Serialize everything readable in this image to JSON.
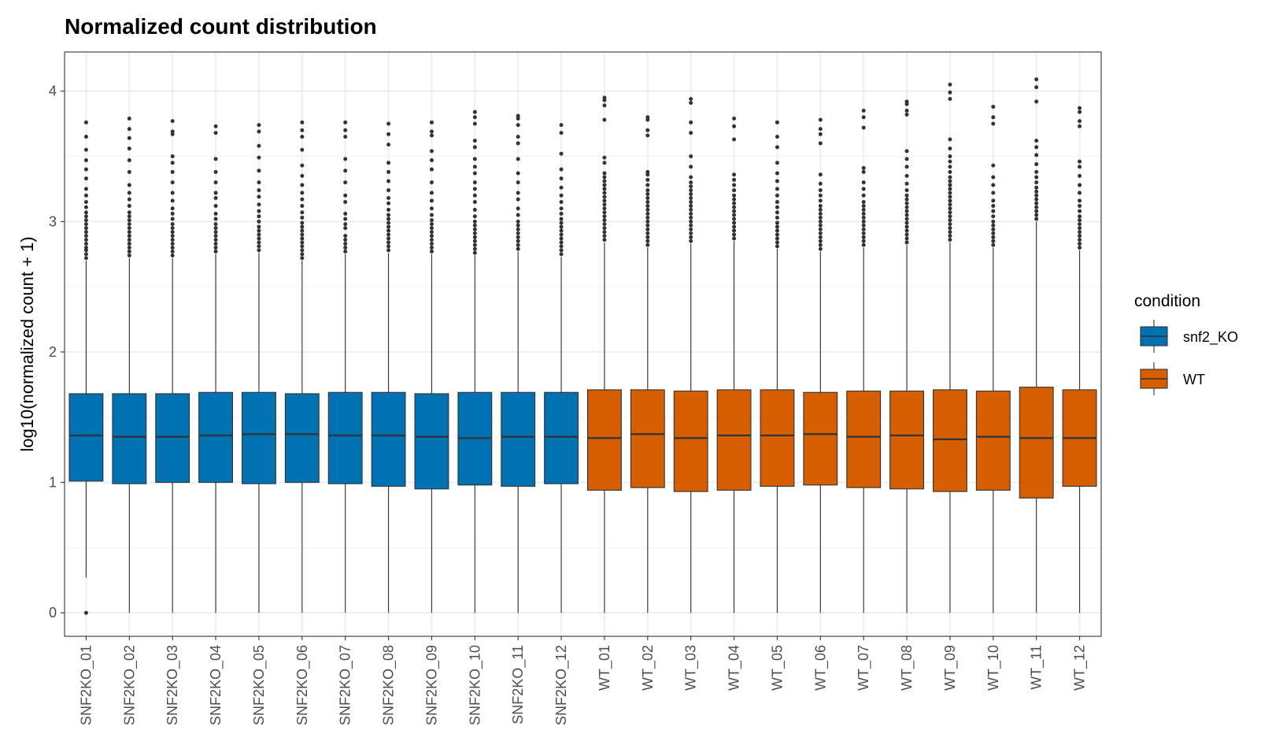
{
  "chart_data": {
    "type": "boxplot",
    "title": "Normalized count distribution",
    "xlabel": "",
    "ylabel": "log10(normalized count + 1)",
    "ylim": [
      -0.18,
      4.3
    ],
    "yticks": [
      0,
      1,
      2,
      3,
      4
    ],
    "grid": true,
    "legend": {
      "title": "condition",
      "position": "right",
      "entries": [
        {
          "name": "snf2_KO",
          "color": "#0072B2"
        },
        {
          "name": "WT",
          "color": "#D55E00"
        }
      ]
    },
    "categories": [
      "SNF2KO_01",
      "SNF2KO_02",
      "SNF2KO_03",
      "SNF2KO_04",
      "SNF2KO_05",
      "SNF2KO_06",
      "SNF2KO_07",
      "SNF2KO_08",
      "SNF2KO_09",
      "SNF2KO_10",
      "SNF2KO_11",
      "SNF2KO_12",
      "WT_01",
      "WT_02",
      "WT_03",
      "WT_04",
      "WT_05",
      "WT_06",
      "WT_07",
      "WT_08",
      "WT_09",
      "WT_10",
      "WT_11",
      "WT_12"
    ],
    "boxes": [
      {
        "sample": "SNF2KO_01",
        "condition": "snf2_KO",
        "min": 0.27,
        "q1": 1.01,
        "median": 1.36,
        "q3": 1.68,
        "max": 2.7,
        "outliers": [
          0.0,
          2.72,
          2.75,
          2.78,
          2.8,
          2.83,
          2.86,
          2.89,
          2.92,
          2.95,
          2.98,
          3.01,
          3.04,
          3.07,
          3.11,
          3.15,
          3.2,
          3.25,
          3.33,
          3.4,
          3.47,
          3.55,
          3.65,
          3.76
        ]
      },
      {
        "sample": "SNF2KO_02",
        "condition": "snf2_KO",
        "min": 0.0,
        "q1": 0.99,
        "median": 1.35,
        "q3": 1.68,
        "max": 2.72,
        "outliers": [
          2.74,
          2.77,
          2.8,
          2.83,
          2.86,
          2.89,
          2.92,
          2.95,
          2.98,
          3.01,
          3.04,
          3.07,
          3.12,
          3.17,
          3.22,
          3.28,
          3.38,
          3.47,
          3.56,
          3.64,
          3.71,
          3.79
        ]
      },
      {
        "sample": "SNF2KO_03",
        "condition": "snf2_KO",
        "min": 0.0,
        "q1": 1.0,
        "median": 1.35,
        "q3": 1.68,
        "max": 2.72,
        "outliers": [
          2.74,
          2.77,
          2.8,
          2.83,
          2.86,
          2.89,
          2.92,
          2.95,
          2.98,
          3.02,
          3.06,
          3.1,
          3.16,
          3.22,
          3.3,
          3.38,
          3.45,
          3.5,
          3.67,
          3.69,
          3.77
        ]
      },
      {
        "sample": "SNF2KO_04",
        "condition": "snf2_KO",
        "min": 0.0,
        "q1": 1.0,
        "median": 1.36,
        "q3": 1.69,
        "max": 2.75,
        "outliers": [
          2.77,
          2.8,
          2.83,
          2.86,
          2.89,
          2.92,
          2.95,
          2.98,
          3.02,
          3.06,
          3.12,
          3.18,
          3.22,
          3.3,
          3.38,
          3.48,
          3.68,
          3.73
        ]
      },
      {
        "sample": "SNF2KO_05",
        "condition": "snf2_KO",
        "min": 0.0,
        "q1": 0.99,
        "median": 1.37,
        "q3": 1.69,
        "max": 2.76,
        "outliers": [
          2.78,
          2.81,
          2.84,
          2.87,
          2.9,
          2.93,
          2.96,
          3.0,
          3.04,
          3.08,
          3.13,
          3.19,
          3.24,
          3.3,
          3.39,
          3.49,
          3.58,
          3.69,
          3.74
        ]
      },
      {
        "sample": "SNF2KO_06",
        "condition": "snf2_KO",
        "min": 0.0,
        "q1": 1.0,
        "median": 1.37,
        "q3": 1.68,
        "max": 2.7,
        "outliers": [
          2.72,
          2.75,
          2.78,
          2.81,
          2.84,
          2.87,
          2.9,
          2.93,
          2.96,
          2.99,
          3.03,
          3.07,
          3.12,
          3.17,
          3.22,
          3.28,
          3.35,
          3.43,
          3.55,
          3.65,
          3.7,
          3.76
        ]
      },
      {
        "sample": "SNF2KO_07",
        "condition": "snf2_KO",
        "min": 0.0,
        "q1": 0.99,
        "median": 1.36,
        "q3": 1.69,
        "max": 2.75,
        "outliers": [
          2.77,
          2.8,
          2.83,
          2.86,
          2.89,
          2.95,
          2.98,
          3.02,
          3.06,
          3.15,
          3.2,
          3.3,
          3.39,
          3.48,
          3.65,
          3.7,
          3.76
        ]
      },
      {
        "sample": "SNF2KO_08",
        "condition": "snf2_KO",
        "min": 0.0,
        "q1": 0.97,
        "median": 1.36,
        "q3": 1.69,
        "max": 2.76,
        "outliers": [
          2.78,
          2.81,
          2.84,
          2.87,
          2.9,
          2.93,
          2.96,
          2.99,
          3.02,
          3.05,
          3.09,
          3.14,
          3.18,
          3.24,
          3.31,
          3.38,
          3.45,
          3.59,
          3.67,
          3.75
        ]
      },
      {
        "sample": "SNF2KO_09",
        "condition": "snf2_KO",
        "min": 0.0,
        "q1": 0.95,
        "median": 1.35,
        "q3": 1.68,
        "max": 2.75,
        "outliers": [
          2.77,
          2.8,
          2.83,
          2.86,
          2.89,
          2.92,
          2.95,
          2.98,
          3.01,
          3.05,
          3.1,
          3.16,
          3.22,
          3.3,
          3.4,
          3.47,
          3.54,
          3.66,
          3.69,
          3.76
        ]
      },
      {
        "sample": "SNF2KO_10",
        "condition": "snf2_KO",
        "min": 0.0,
        "q1": 0.98,
        "median": 1.34,
        "q3": 1.69,
        "max": 2.74,
        "outliers": [
          2.76,
          2.79,
          2.82,
          2.85,
          2.88,
          2.91,
          2.94,
          2.97,
          3.0,
          3.04,
          3.09,
          3.15,
          3.2,
          3.25,
          3.3,
          3.37,
          3.42,
          3.48,
          3.57,
          3.62,
          3.75,
          3.8,
          3.84
        ]
      },
      {
        "sample": "SNF2KO_11",
        "condition": "snf2_KO",
        "min": 0.0,
        "q1": 0.97,
        "median": 1.35,
        "q3": 1.69,
        "max": 2.77,
        "outliers": [
          2.79,
          2.82,
          2.85,
          2.88,
          2.91,
          2.94,
          2.97,
          3.0,
          3.05,
          3.1,
          3.17,
          3.22,
          3.3,
          3.37,
          3.48,
          3.6,
          3.65,
          3.74,
          3.79,
          3.81
        ]
      },
      {
        "sample": "SNF2KO_12",
        "condition": "snf2_KO",
        "min": 0.0,
        "q1": 0.99,
        "median": 1.35,
        "q3": 1.69,
        "max": 2.73,
        "outliers": [
          2.75,
          2.78,
          2.81,
          2.84,
          2.87,
          2.9,
          2.93,
          2.96,
          2.99,
          3.02,
          3.06,
          3.1,
          3.15,
          3.2,
          3.26,
          3.33,
          3.4,
          3.52,
          3.68,
          3.74
        ]
      },
      {
        "sample": "WT_01",
        "condition": "WT",
        "min": 0.0,
        "q1": 0.94,
        "median": 1.34,
        "q3": 1.71,
        "max": 2.84,
        "outliers": [
          2.86,
          2.89,
          2.92,
          2.95,
          2.98,
          3.01,
          3.04,
          3.07,
          3.1,
          3.13,
          3.16,
          3.19,
          3.22,
          3.25,
          3.28,
          3.31,
          3.34,
          3.37,
          3.45,
          3.49,
          3.78,
          3.89,
          3.93,
          3.95
        ]
      },
      {
        "sample": "WT_02",
        "condition": "WT",
        "min": 0.0,
        "q1": 0.96,
        "median": 1.37,
        "q3": 1.71,
        "max": 2.8,
        "outliers": [
          2.82,
          2.85,
          2.88,
          2.91,
          2.94,
          2.97,
          3.0,
          3.03,
          3.06,
          3.09,
          3.12,
          3.15,
          3.18,
          3.21,
          3.24,
          3.28,
          3.32,
          3.36,
          3.38,
          3.66,
          3.7,
          3.78,
          3.8
        ]
      },
      {
        "sample": "WT_03",
        "condition": "WT",
        "min": 0.0,
        "q1": 0.93,
        "median": 1.34,
        "q3": 1.7,
        "max": 2.83,
        "outliers": [
          2.85,
          2.88,
          2.91,
          2.94,
          2.97,
          3.0,
          3.03,
          3.06,
          3.09,
          3.12,
          3.15,
          3.18,
          3.21,
          3.24,
          3.27,
          3.3,
          3.34,
          3.42,
          3.5,
          3.68,
          3.76,
          3.91,
          3.94
        ]
      },
      {
        "sample": "WT_04",
        "condition": "WT",
        "min": 0.0,
        "q1": 0.94,
        "median": 1.36,
        "q3": 1.71,
        "max": 2.85,
        "outliers": [
          2.87,
          2.9,
          2.93,
          2.96,
          2.99,
          3.02,
          3.05,
          3.08,
          3.11,
          3.14,
          3.17,
          3.2,
          3.24,
          3.28,
          3.32,
          3.36,
          3.63,
          3.73,
          3.79
        ]
      },
      {
        "sample": "WT_05",
        "condition": "WT",
        "min": 0.0,
        "q1": 0.97,
        "median": 1.36,
        "q3": 1.71,
        "max": 2.79,
        "outliers": [
          2.81,
          2.84,
          2.87,
          2.9,
          2.93,
          2.96,
          2.99,
          3.03,
          3.07,
          3.11,
          3.15,
          3.2,
          3.25,
          3.31,
          3.37,
          3.45,
          3.57,
          3.65,
          3.76
        ]
      },
      {
        "sample": "WT_06",
        "condition": "WT",
        "min": 0.0,
        "q1": 0.98,
        "median": 1.37,
        "q3": 1.69,
        "max": 2.77,
        "outliers": [
          2.79,
          2.82,
          2.85,
          2.88,
          2.91,
          2.94,
          2.97,
          3.0,
          3.03,
          3.06,
          3.09,
          3.12,
          3.16,
          3.2,
          3.24,
          3.29,
          3.36,
          3.6,
          3.67,
          3.71,
          3.78
        ]
      },
      {
        "sample": "WT_07",
        "condition": "WT",
        "min": 0.0,
        "q1": 0.96,
        "median": 1.35,
        "q3": 1.7,
        "max": 2.8,
        "outliers": [
          2.82,
          2.85,
          2.88,
          2.91,
          2.94,
          2.97,
          3.0,
          3.03,
          3.06,
          3.09,
          3.12,
          3.15,
          3.2,
          3.25,
          3.3,
          3.38,
          3.41,
          3.72,
          3.8,
          3.85
        ]
      },
      {
        "sample": "WT_08",
        "condition": "WT",
        "min": 0.0,
        "q1": 0.95,
        "median": 1.36,
        "q3": 1.7,
        "max": 2.82,
        "outliers": [
          2.84,
          2.87,
          2.9,
          2.93,
          2.96,
          2.99,
          3.02,
          3.05,
          3.08,
          3.11,
          3.14,
          3.17,
          3.2,
          3.24,
          3.29,
          3.35,
          3.42,
          3.48,
          3.54,
          3.82,
          3.85,
          3.9,
          3.92
        ]
      },
      {
        "sample": "WT_09",
        "condition": "WT",
        "min": 0.0,
        "q1": 0.93,
        "median": 1.33,
        "q3": 1.71,
        "max": 2.84,
        "outliers": [
          2.86,
          2.89,
          2.92,
          2.95,
          2.98,
          3.01,
          3.04,
          3.07,
          3.1,
          3.13,
          3.16,
          3.19,
          3.22,
          3.25,
          3.28,
          3.31,
          3.34,
          3.38,
          3.42,
          3.46,
          3.5,
          3.56,
          3.63,
          3.94,
          3.99,
          4.05
        ]
      },
      {
        "sample": "WT_10",
        "condition": "WT",
        "min": 0.0,
        "q1": 0.94,
        "median": 1.35,
        "q3": 1.7,
        "max": 2.8,
        "outliers": [
          2.82,
          2.85,
          2.88,
          2.91,
          2.94,
          2.97,
          3.0,
          3.04,
          3.08,
          3.12,
          3.16,
          3.22,
          3.28,
          3.34,
          3.43,
          3.75,
          3.8,
          3.88
        ]
      },
      {
        "sample": "WT_11",
        "condition": "WT",
        "min": 0.0,
        "q1": 0.88,
        "median": 1.34,
        "q3": 1.73,
        "max": 3.0,
        "outliers": [
          3.02,
          3.05,
          3.08,
          3.11,
          3.14,
          3.17,
          3.2,
          3.23,
          3.26,
          3.3,
          3.34,
          3.38,
          3.44,
          3.51,
          3.57,
          3.62,
          3.92,
          4.03,
          4.09
        ]
      },
      {
        "sample": "WT_12",
        "condition": "WT",
        "min": 0.0,
        "q1": 0.97,
        "median": 1.34,
        "q3": 1.71,
        "max": 2.78,
        "outliers": [
          2.8,
          2.83,
          2.86,
          2.89,
          2.92,
          2.95,
          2.98,
          3.01,
          3.04,
          3.08,
          3.12,
          3.16,
          3.22,
          3.28,
          3.35,
          3.42,
          3.46,
          3.73,
          3.77,
          3.84,
          3.87
        ]
      }
    ]
  }
}
